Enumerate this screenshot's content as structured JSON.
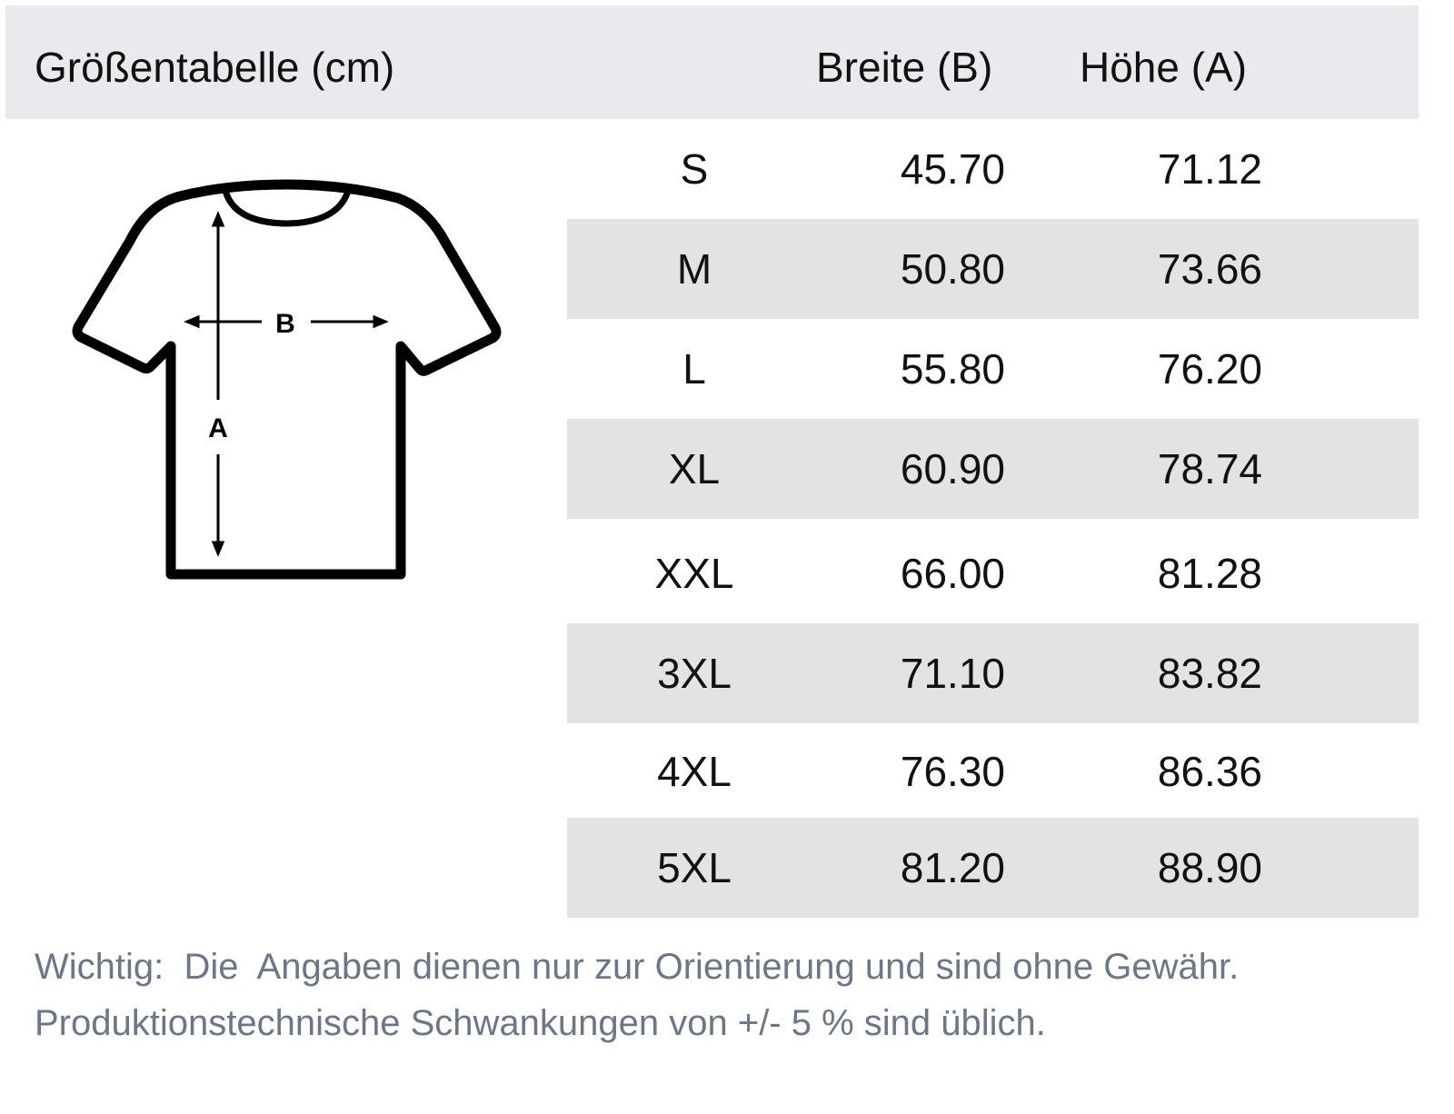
{
  "header": {
    "title": "Größentabelle (cm)",
    "col_width": "Breite (B)",
    "col_height": "Höhe (A)"
  },
  "diagram": {
    "label_width": "B",
    "label_height": "A"
  },
  "rows": [
    {
      "size": "S",
      "width": "45.70",
      "height": "71.12"
    },
    {
      "size": "M",
      "width": "50.80",
      "height": "73.66"
    },
    {
      "size": "L",
      "width": "55.80",
      "height": "76.20"
    },
    {
      "size": "XL",
      "width": "60.90",
      "height": "78.74"
    },
    {
      "size": "XXL",
      "width": "66.00",
      "height": "81.28"
    },
    {
      "size": "3XL",
      "width": "71.10",
      "height": "83.82"
    },
    {
      "size": "4XL",
      "width": "76.30",
      "height": "86.36"
    },
    {
      "size": "5XL",
      "width": "81.20",
      "height": "88.90"
    }
  ],
  "note": {
    "line1": "Wichtig:  Die  Angaben dienen nur zur Orientierung und sind ohne Gewähr.",
    "line2": "Produktionstechnische Schwankungen von +/- 5 % sind üblich."
  },
  "colors": {
    "header_bg": "#e9eaee",
    "row_alt_bg": "#e3e3e3",
    "note_text": "#6b7689"
  }
}
